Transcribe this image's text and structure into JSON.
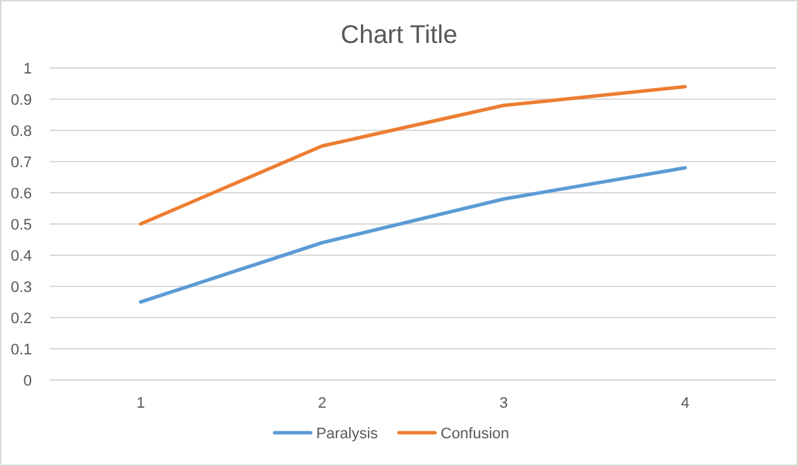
{
  "chart_data": {
    "type": "line",
    "title": "Chart Title",
    "categories": [
      "1",
      "2",
      "3",
      "4"
    ],
    "series": [
      {
        "name": "Paralysis",
        "color": "#5b9bd5",
        "values": [
          0.25,
          0.44,
          0.58,
          0.68
        ]
      },
      {
        "name": "Confusion",
        "color": "#ed7d31",
        "values": [
          0.5,
          0.75,
          0.88,
          0.94
        ]
      }
    ],
    "ylim": [
      0,
      1
    ],
    "yticks": [
      0,
      0.1,
      0.2,
      0.3,
      0.4,
      0.5,
      0.6,
      0.7,
      0.8,
      0.9,
      1
    ],
    "grid": "y",
    "legend": "bottom",
    "marker": "none",
    "line_style": "solid"
  }
}
